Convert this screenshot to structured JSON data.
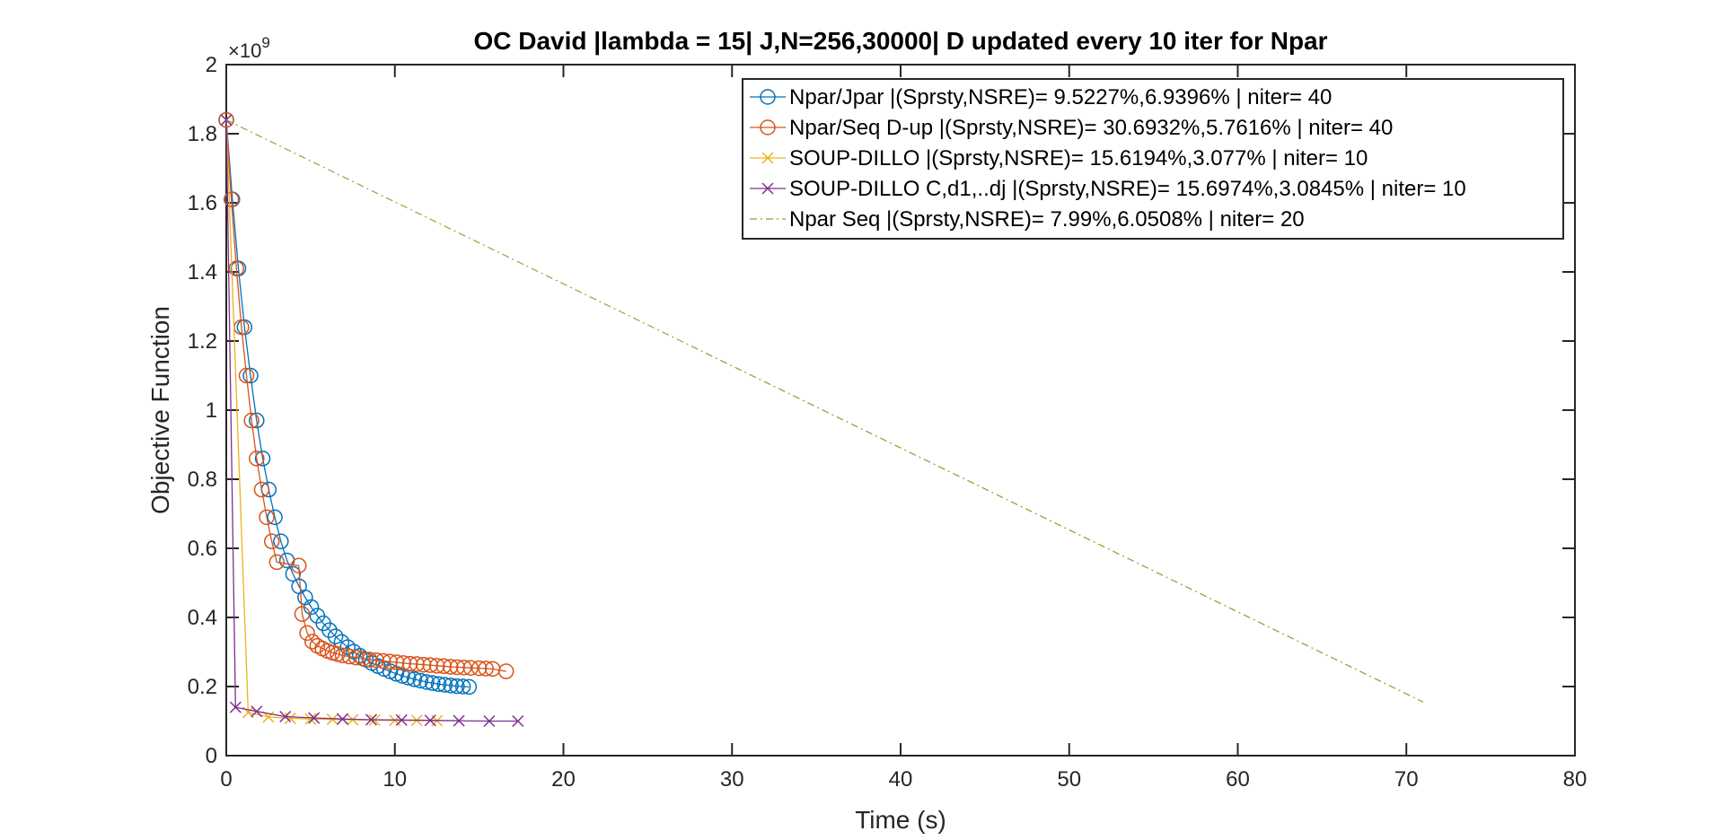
{
  "chart_data": {
    "type": "line",
    "title": "OC David |lambda = 15| J,N=256,30000| D updated every 10 iter for Npar",
    "xlabel": "Time (s)",
    "ylabel": "Objective Function",
    "xlim": [
      0,
      80
    ],
    "ylim": [
      0,
      2
    ],
    "y_exponent_base": "×10",
    "y_exponent_power": "9",
    "xticks": [
      0,
      10,
      20,
      30,
      40,
      50,
      60,
      70,
      80
    ],
    "xtick_labels": [
      "0",
      "10",
      "20",
      "30",
      "40",
      "50",
      "60",
      "70",
      "80"
    ],
    "yticks": [
      0,
      0.2,
      0.4,
      0.6,
      0.8,
      1,
      1.2,
      1.4,
      1.6,
      1.8,
      2
    ],
    "ytick_labels": [
      "0",
      "0.2",
      "0.4",
      "0.6",
      "0.8",
      "1",
      "1.2",
      "1.4",
      "1.6",
      "1.8",
      "2"
    ],
    "grid": false,
    "legend_position": "top-right",
    "series": [
      {
        "name": "Npar/Jpar |(Sprsty,NSRE)= 9.5227%,6.9396% | niter= 40",
        "color": "#0072BD",
        "marker": "circle",
        "line": "solid",
        "x": [
          0,
          0.36,
          0.72,
          1.08,
          1.44,
          1.8,
          2.16,
          2.52,
          2.88,
          3.24,
          3.6,
          3.96,
          4.32,
          4.68,
          5.04,
          5.4,
          5.76,
          6.12,
          6.48,
          6.84,
          7.2,
          7.56,
          7.92,
          8.28,
          8.64,
          9.0,
          9.36,
          9.72,
          10.08,
          10.44,
          10.8,
          11.16,
          11.52,
          11.88,
          12.24,
          12.6,
          12.96,
          13.32,
          13.68,
          14.04,
          14.4
        ],
        "y": [
          1.84,
          1.61,
          1.41,
          1.24,
          1.1,
          0.97,
          0.86,
          0.77,
          0.69,
          0.62,
          0.565,
          0.526,
          0.49,
          0.458,
          0.43,
          0.405,
          0.383,
          0.363,
          0.345,
          0.329,
          0.314,
          0.301,
          0.289,
          0.278,
          0.268,
          0.259,
          0.251,
          0.244,
          0.237,
          0.231,
          0.226,
          0.221,
          0.217,
          0.213,
          0.21,
          0.207,
          0.205,
          0.203,
          0.201,
          0.2,
          0.199
        ]
      },
      {
        "name": "Npar/Seq D-up |(Sprsty,NSRE)= 30.6932%,5.7616% | niter= 40",
        "color": "#D95319",
        "marker": "circle",
        "line": "solid",
        "x": [
          0,
          0.3,
          0.6,
          0.9,
          1.2,
          1.5,
          1.8,
          2.1,
          2.4,
          2.7,
          3.0,
          4.3,
          4.5,
          4.8,
          5.1,
          5.4,
          5.7,
          6.0,
          6.3,
          6.6,
          6.9,
          7.3,
          7.7,
          8.1,
          8.5,
          8.9,
          9.3,
          9.7,
          10.1,
          10.5,
          10.9,
          11.3,
          11.7,
          12.1,
          12.5,
          12.9,
          13.3,
          13.7,
          14.1,
          14.5,
          15.0,
          15.4,
          15.8,
          16.6
        ],
        "y": [
          1.84,
          1.61,
          1.41,
          1.24,
          1.1,
          0.97,
          0.86,
          0.77,
          0.69,
          0.62,
          0.56,
          0.55,
          0.41,
          0.355,
          0.33,
          0.318,
          0.31,
          0.303,
          0.298,
          0.294,
          0.29,
          0.287,
          0.284,
          0.281,
          0.278,
          0.276,
          0.274,
          0.272,
          0.27,
          0.268,
          0.266,
          0.265,
          0.263,
          0.262,
          0.26,
          0.259,
          0.257,
          0.256,
          0.255,
          0.254,
          0.253,
          0.252,
          0.251,
          0.244
        ]
      },
      {
        "name": "SOUP-DILLO |(Sprsty,NSRE)= 15.6194%,3.077% | niter= 10",
        "color": "#EDB120",
        "marker": "x",
        "line": "solid",
        "x": [
          0,
          1.3,
          2.5,
          3.8,
          5.0,
          6.3,
          7.5,
          8.8,
          10.0,
          11.3,
          12.5
        ],
        "y": [
          1.84,
          0.125,
          0.112,
          0.108,
          0.106,
          0.105,
          0.104,
          0.103,
          0.102,
          0.102,
          0.101
        ]
      },
      {
        "name": "SOUP-DILLO C,d1,..dj |(Sprsty,NSRE)= 15.6974%,3.0845% | niter= 10",
        "color": "#7E2F8E",
        "marker": "x",
        "line": "solid",
        "x": [
          0,
          0.55,
          1.8,
          3.5,
          5.2,
          6.9,
          8.6,
          10.4,
          12.1,
          13.8,
          15.6,
          17.3
        ],
        "y": [
          1.84,
          0.14,
          0.128,
          0.113,
          0.109,
          0.106,
          0.104,
          0.103,
          0.102,
          0.101,
          0.1,
          0.1
        ]
      },
      {
        "name": "Npar Seq |(Sprsty,NSRE)= 7.99%,6.0508% | niter= 20",
        "color": "#77AC30",
        "marker": "none",
        "line": "dashdot",
        "x": [
          0,
          71
        ],
        "y": [
          1.84,
          0.155
        ]
      }
    ]
  }
}
